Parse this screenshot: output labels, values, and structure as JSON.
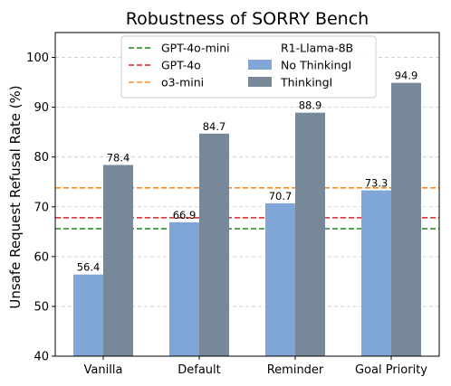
{
  "chart_data": {
    "type": "bar",
    "title": "Robustness of SORRY Bench",
    "xlabel": "",
    "ylabel": "Unsafe Request Refusal Rate (%)",
    "ylim": [
      40,
      105
    ],
    "yticks": [
      40,
      50,
      60,
      70,
      80,
      90,
      100
    ],
    "grid": true,
    "legend_position": "top-center",
    "categories": [
      "Vanilla",
      "Default",
      "Reminder",
      "Goal Priority"
    ],
    "group_label": "R1-Llama-8B",
    "series": [
      {
        "name": "No ThinkingI",
        "values": [
          56.4,
          66.9,
          70.7,
          73.3
        ],
        "color": "#7fa6d6"
      },
      {
        "name": "ThinkingI",
        "values": [
          78.4,
          84.7,
          88.9,
          94.9
        ],
        "color": "#778899"
      }
    ],
    "reference_lines": [
      {
        "name": "GPT-4o-mini",
        "value": 65.6,
        "color": "#1a8a1a"
      },
      {
        "name": "GPT-4o",
        "value": 67.8,
        "color": "#e02020"
      },
      {
        "name": "o3-mini",
        "value": 73.8,
        "color": "#ff8c1a"
      }
    ]
  }
}
